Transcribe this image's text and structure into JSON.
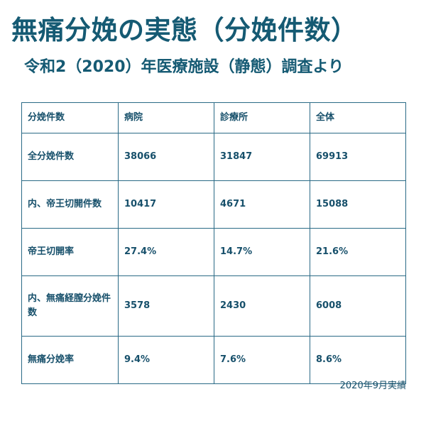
{
  "title": "無痛分娩の実態（分娩件数）",
  "subtitle": "令和2（2020）年医療施設（静態）調査より",
  "colors": {
    "title": "#155a73",
    "text": "#17506b",
    "border": "#2a6a86",
    "highlight": "#e0343a"
  },
  "table": {
    "headers": [
      "分娩件数",
      "病院",
      "診療所",
      "全体"
    ],
    "rows": [
      {
        "label": "全分娩件数",
        "values": [
          "38066",
          "31847",
          "69913"
        ]
      },
      {
        "label": "内、帝王切開件数",
        "values": [
          "10417",
          "4671",
          "15088"
        ]
      },
      {
        "label": "帝王切開率",
        "values": [
          "27.4%",
          "14.7%",
          "21.6%"
        ]
      },
      {
        "label": "内、無痛経膣分娩件数",
        "values": [
          "3578",
          "2430",
          "6008"
        ]
      },
      {
        "label": "無痛分娩率",
        "values": [
          "9.4%",
          "7.6%",
          "8.6%"
        ]
      }
    ]
  },
  "footnote": "2020年9月実績"
}
